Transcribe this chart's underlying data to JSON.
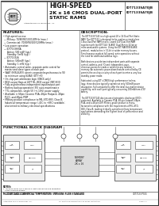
{
  "title_line1": "HIGH-SPEED",
  "title_line2": "2K x 16 CMOS DUAL-PORT",
  "title_line3": "STATIC RAMS",
  "part_line1": "IDT7133SA70JB",
  "part_line2": "IDT7133SA70JB",
  "logo_text": "IDT",
  "company_text": "Integrated Device Technology, Inc.",
  "features_title": "FEATURES:",
  "features": [
    "High-speed access:",
    "-- Military: 70/80/90/100/120MHz (max.)",
    "-- Commercial: 70/80/90/100/120MHz (max.)",
    "Low power operation:",
    "-- IDT7133H/SA",
    "   Active: 500 mW (typ.)",
    "   Standby: 5mW (typ.)",
    "-- IDT7133LA",
    "   Active: 500mW (typ.)",
    "   Standby: 1 mW (typ.)",
    "Automatic control write, separate-write control for",
    "  master and slave types of each port",
    "WAIT (R/W-BUSY) asserts separate/asynchronous to 90",
    "  ns minimum using SLAVE (DT7+K)",
    "On-chip port arbitration logic (ONCE-only)",
    "BDX output flags at LEFT BL, BDX output (INT/HI-0)",
    "Fully asynchronous independent input/output port",
    "Battery backup operation (3V) auto-maintenance",
    "TTL compatible, single 5V (+/-10%) power supply",
    "Available in 68pin Ceramic PGA, 48pin Flatpack, 48pin",
    "  PLCC, and 48pin PDIP",
    "Military product compliance to MIL-STD-883, Class B;",
    "  Industrial temperature range (-40C to +85C) available;",
    "  also tested to military electrical specifications"
  ],
  "description_title": "DESCRIPTION:",
  "description": [
    "The IDT7133/7143 is a high-speed 2K x 16 Dual-Port Static",
    "RAM. The IDT7133 is designed to be used as a stand-alone",
    "1-Bus Dual-Port RAM or as a 1-word 32V Dual-Port RAM",
    "together with the IDT7143 'SLAVE' Dual-Port in 32-bit or",
    "more word-width systems. Using the IDT MASTER/SLAVE",
    "protocol, reads/writes in 32-bit or wider memory busses.",
    "Simultaneous reads at full speed, write operations without",
    "the need for additional address logic.",
    "",
    "Both devices provide two independent ports with separate",
    "control, address, and I/O and independent, asyn-",
    "chronous access for reads or writes for any location in",
    "memory. An automatic power-down feature controlled by CE",
    "permits the on chip circuitry of each port to enter a very low",
    "standby power mode.",
    "",
    "Fabricated using IDT's CMOS high performance techno-",
    "logy, these devices typically operate at only 500mW power",
    "dissipation. Full compatibility offer the ideal bus-master design",
    "capability, with each port typically consuming 180mA from a 3V",
    "battery.",
    "",
    "The IDT7133/7143 devices are electrostatic discharge (ESD)-",
    "protected. Available in Ceramic PGA, 48-pin flatpack, 68pin",
    "PGA, and a 48-pin DIP. Military grade product is manu-",
    "factured in compliance with the requirements of MIL-STD-",
    "883, Class B, making it ideally suited to military temperature",
    "applications demanding the highest level of performance and",
    "reliability."
  ],
  "functional_block_title": "FUNCTIONAL BLOCK DIAGRAM",
  "footer_left": "MILITARY AND COMMERCIAL TEMPERATURE: VERSIONS FLOW STANDARD",
  "footer_center": "IDT7133 P355",
  "footer_bottom": "Integrated Device Technology, Inc.",
  "bg_color": "#ffffff",
  "border_color": "#000000",
  "header_gray": "#cccccc"
}
